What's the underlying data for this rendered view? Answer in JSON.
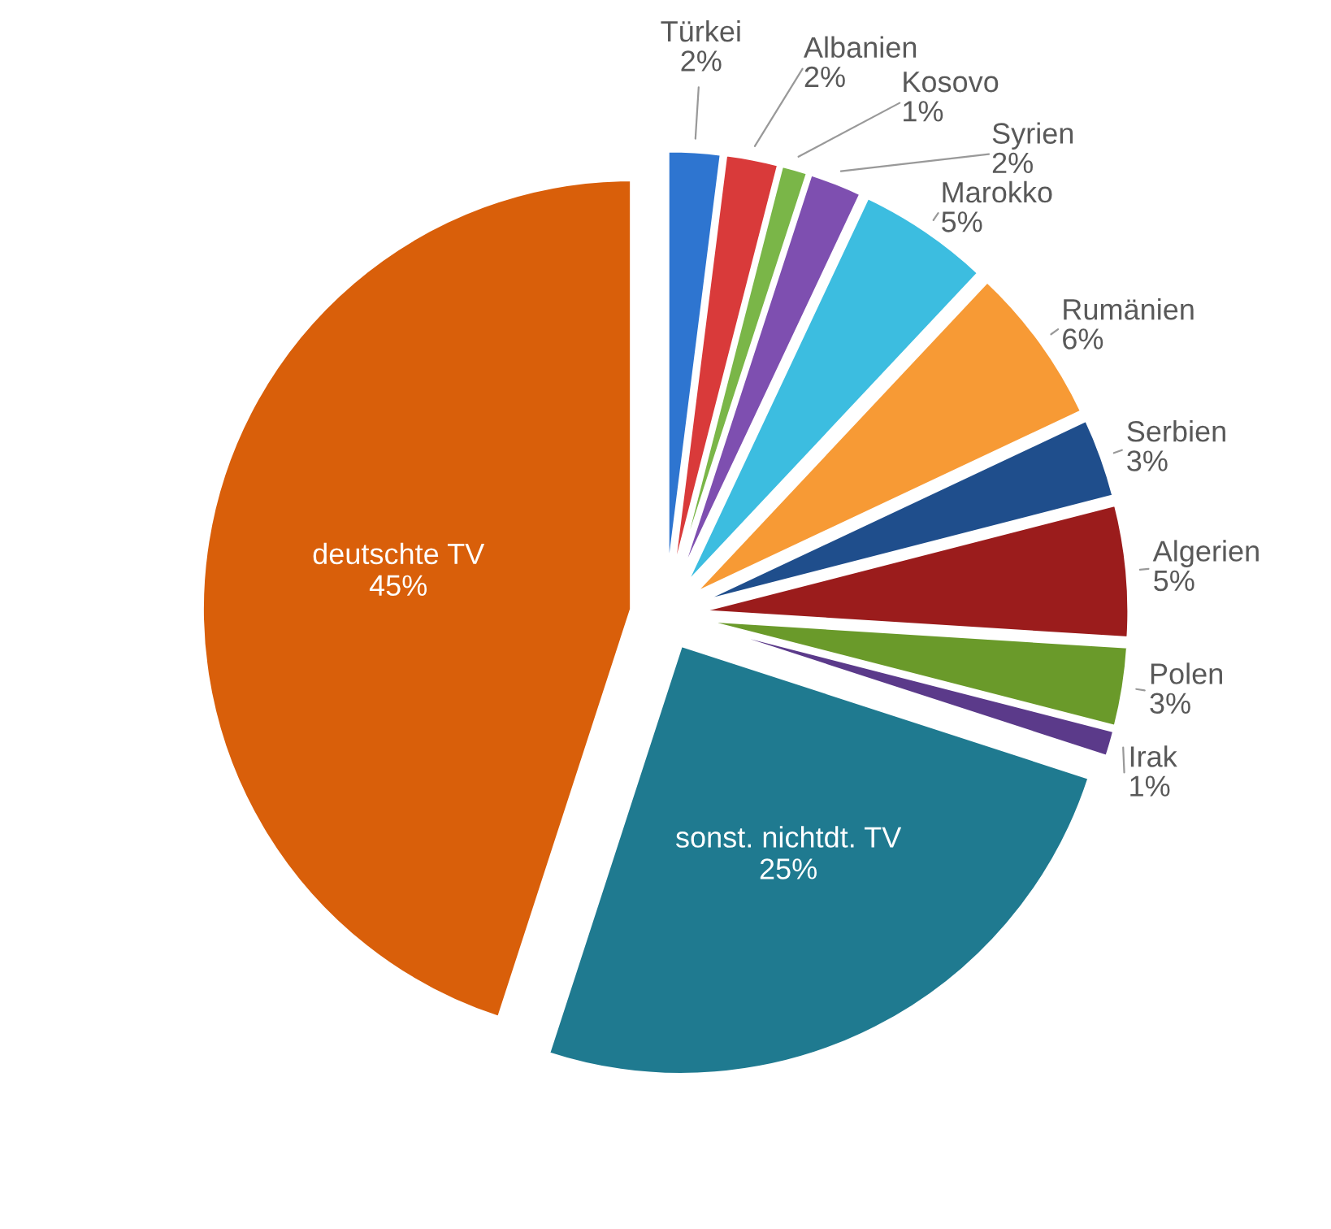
{
  "chart_data": {
    "type": "pie",
    "categories": [
      "Türkei",
      "Albanien",
      "Kosovo",
      "Syrien",
      "Marokko",
      "Rumänien",
      "Serbien",
      "Algerien",
      "Polen",
      "Irak",
      "sonst. nichtdt. TV",
      "deutschte TV"
    ],
    "values": [
      2,
      2,
      1,
      2,
      5,
      6,
      3,
      5,
      3,
      1,
      25,
      45
    ],
    "value_labels": [
      "2%",
      "2%",
      "1%",
      "2%",
      "5%",
      "6%",
      "3%",
      "5%",
      "3%",
      "1%",
      "25%",
      "45%"
    ],
    "colors": [
      "#2e75d0",
      "#d93a3a",
      "#7ab648",
      "#7e4fb0",
      "#3cbde0",
      "#f79a35",
      "#1f4e8c",
      "#9b1c1c",
      "#6a9a2a",
      "#5b3a8a",
      "#1f7a90",
      "#d95f0a"
    ]
  }
}
